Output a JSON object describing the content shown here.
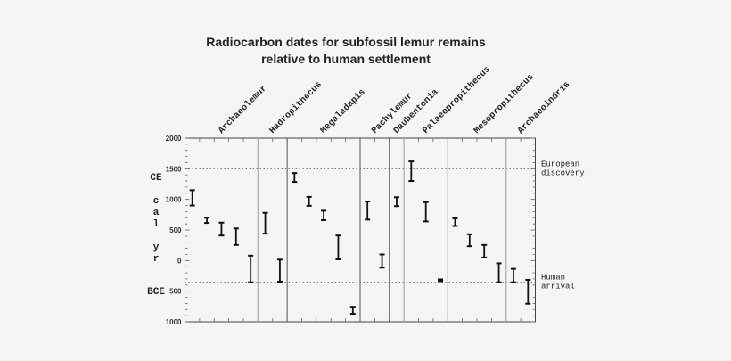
{
  "chart_data": {
    "type": "range-bar",
    "title_lines": [
      "Radiocarbon dates for subfossil lemur remains",
      "relative to human settlement"
    ],
    "ylabel_top": "CE",
    "ylabel_mid": [
      "c",
      "a",
      "l",
      "",
      "y",
      "r"
    ],
    "ylabel_bottom": "BCE",
    "ylim": [
      -1000,
      2000
    ],
    "ytick_values": [
      2000,
      1500,
      1000,
      500,
      0,
      -500,
      -1000
    ],
    "ytick_labels": [
      "2000",
      "1500",
      "1000",
      "500",
      "0",
      "500",
      "1000"
    ],
    "reference_lines": [
      {
        "value": 1500,
        "label_lines": [
          "European",
          "discovery"
        ]
      },
      {
        "value": -350,
        "label_lines": [
          "Human",
          "arrival"
        ]
      }
    ],
    "groups": [
      {
        "name": "Archaeolemur",
        "ranges": [
          [
            900,
            1150
          ],
          [
            615,
            700
          ],
          [
            410,
            620
          ],
          [
            255,
            525
          ],
          [
            -355,
            80
          ]
        ]
      },
      {
        "name": "Hadropithecus",
        "ranges": [
          [
            440,
            780
          ],
          [
            -345,
            15
          ]
        ]
      },
      {
        "name": "Megaladapis",
        "ranges": [
          [
            1285,
            1430
          ],
          [
            895,
            1040
          ],
          [
            660,
            815
          ],
          [
            20,
            410
          ],
          [
            -870,
            -755
          ]
        ]
      },
      {
        "name": "Pachylemur",
        "ranges": [
          [
            670,
            965
          ],
          [
            -115,
            100
          ]
        ]
      },
      {
        "name": "Daubentonia",
        "ranges": [
          [
            890,
            1035
          ]
        ]
      },
      {
        "name": "Palaeopropithecus",
        "ranges": [
          [
            1300,
            1620
          ],
          [
            640,
            955
          ],
          [
            -335,
            -310
          ]
        ]
      },
      {
        "name": "Mesopropithecus",
        "ranges": [
          [
            565,
            690
          ],
          [
            235,
            430
          ],
          [
            50,
            255
          ],
          [
            -355,
            -45
          ]
        ]
      },
      {
        "name": "Archaeoindris",
        "ranges": [
          [
            -355,
            -135
          ],
          [
            -705,
            -315
          ]
        ]
      }
    ],
    "grid": false
  }
}
